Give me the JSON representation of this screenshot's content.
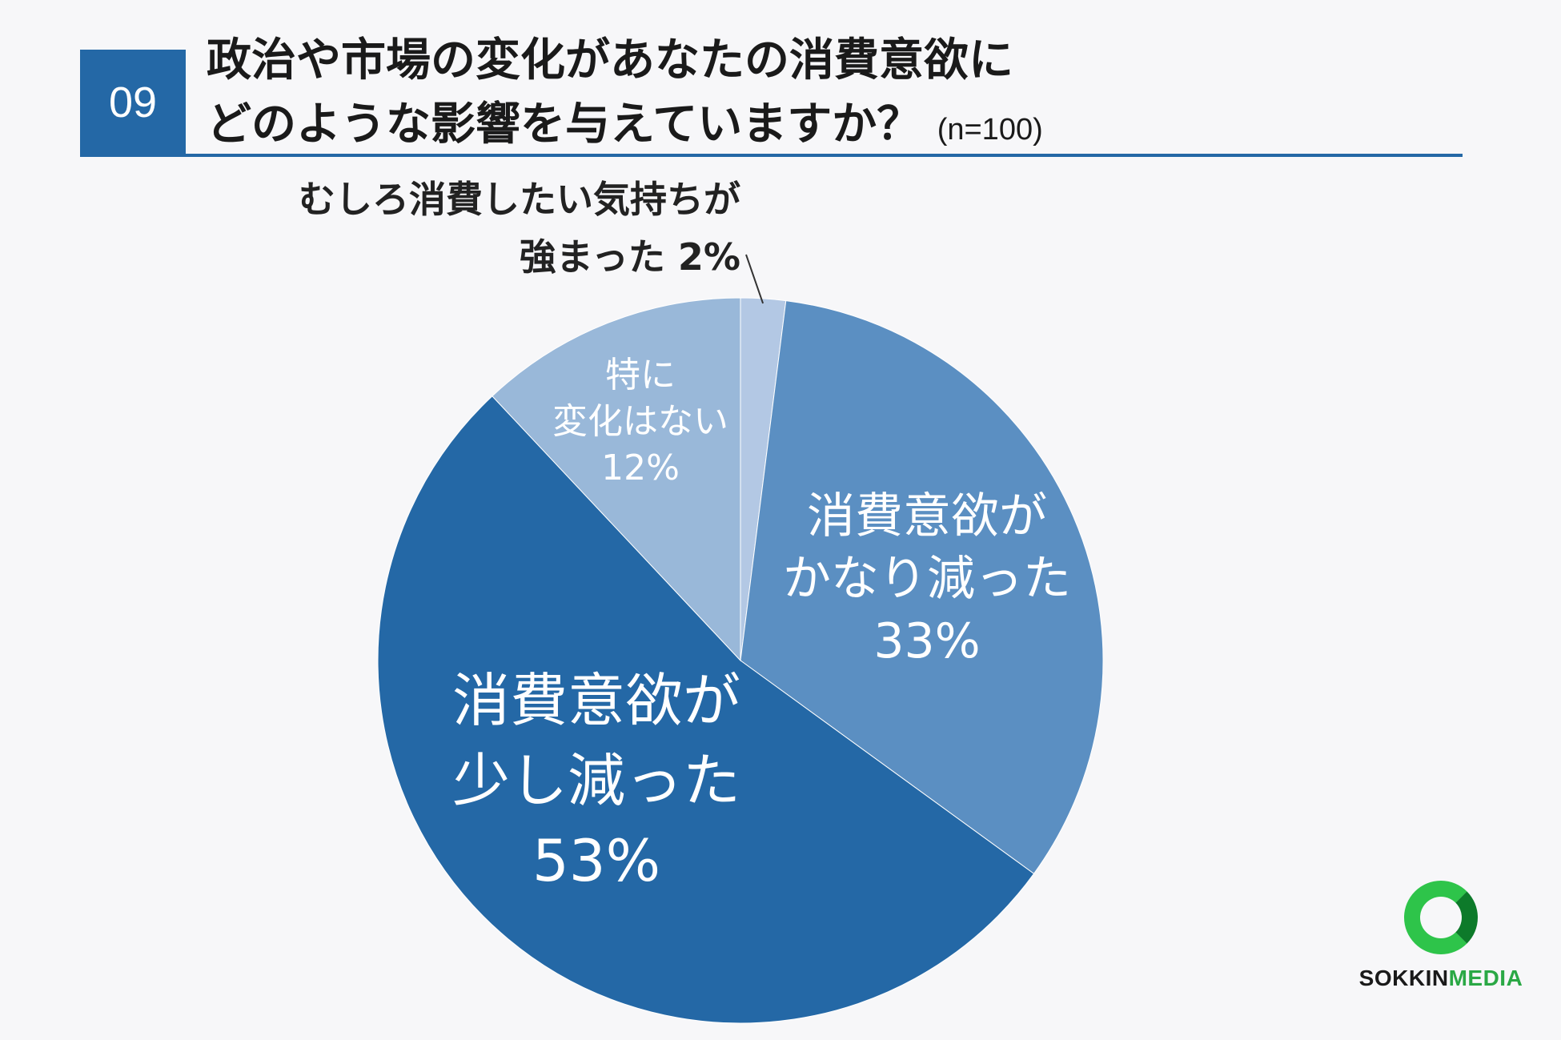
{
  "header": {
    "question_number": "09",
    "title_line1": "政治や市場の変化があなたの消費意欲に",
    "title_line2": "どのような影響を与えていますか？",
    "sample_size": "(n=100)"
  },
  "chart_data": {
    "type": "pie",
    "start_angle_deg": 0,
    "direction": "clockwise",
    "slices": [
      {
        "label": "むしろ消費したい気持ちが強まった",
        "label_lines": [
          "むしろ消費したい気持ちが",
          "強まった 2%"
        ],
        "percent_label": "2%",
        "value": 2,
        "color": "#b3c8e4"
      },
      {
        "label": "消費意欲がかなり減った",
        "label_lines": [
          "消費意欲が",
          "かなり減った",
          "33%"
        ],
        "percent_label": "33%",
        "value": 33,
        "color": "#5b8fc2"
      },
      {
        "label": "消費意欲が少し減った",
        "label_lines": [
          "消費意欲が",
          "少し減った",
          "53%"
        ],
        "percent_label": "53%",
        "value": 53,
        "color": "#2468a6"
      },
      {
        "label": "特に変化はない",
        "label_lines": [
          "特に",
          "変化はない",
          "12%"
        ],
        "percent_label": "12%",
        "value": 12,
        "color": "#99b8d9"
      }
    ]
  },
  "logo": {
    "part1": "SOKKIN",
    "part2": "MEDIA"
  }
}
